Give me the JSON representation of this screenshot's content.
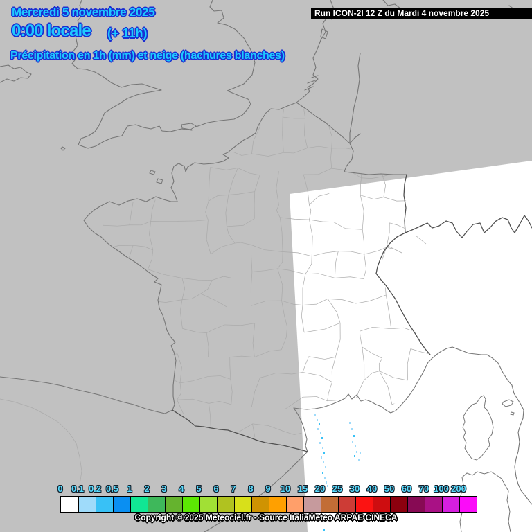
{
  "header": {
    "date": "Mercredi 5 novembre 2025",
    "local_time": "0:00 locale",
    "hour_offset": "(+ 11h)",
    "variable_legend": "Précipitation en 1h (mm) et neige (hachures blanches)",
    "run_info": "Run ICON-2I 12 Z du Mardi 4 novembre 2025"
  },
  "footer": {
    "copyright": "Copyright © 2025 Meteociel.fr - Source ItaliaMeteo ARPAE CINECA"
  },
  "colorbar": {
    "unit_labels": [
      "0",
      "0.1",
      "0.2",
      "0.5",
      "1",
      "2",
      "3",
      "4",
      "5",
      "6",
      "7",
      "8",
      "9",
      "10",
      "15",
      "20",
      "25",
      "30",
      "40",
      "50",
      "60",
      "70",
      "100",
      "200"
    ],
    "cell_colors": [
      "#ffffff",
      "#9fdbfa",
      "#38c1f6",
      "#0a8ff2",
      "#11e794",
      "#3eb85b",
      "#65b32e",
      "#5ce703",
      "#a1e035",
      "#b0c220",
      "#d8e01a",
      "#cf9302",
      "#ffa000",
      "#ff9f6a",
      "#c69a9d",
      "#c26d36",
      "#cd3c36",
      "#fc1312",
      "#ce0d10",
      "#8c000e",
      "#870a54",
      "#a91185",
      "#d61fdf",
      "#fb0cf9"
    ],
    "tick_color": "#58dcff"
  },
  "map": {
    "background": "#c1c1c1",
    "domain_fill": "#ffffff",
    "coast_color": "#757575",
    "national_border_color": "#4f4f4f",
    "department_border_color": "#aaaaaa",
    "title_fill": "#1ec9ff",
    "title_outline": "#1b2ed1",
    "precip_dots": [
      [
        454,
        598,
        "#9fdbfa"
      ],
      [
        457,
        605,
        "#9fdbfa"
      ],
      [
        460,
        611,
        "#38c1f6"
      ],
      [
        458,
        618,
        "#9fdbfa"
      ],
      [
        462,
        624,
        "#9fdbfa"
      ],
      [
        464,
        631,
        "#38c1f6"
      ],
      [
        461,
        638,
        "#9fdbfa"
      ],
      [
        465,
        645,
        "#9fdbfa"
      ],
      [
        467,
        652,
        "#38c1f6"
      ],
      [
        463,
        659,
        "#9fdbfa"
      ],
      [
        466,
        666,
        "#9fdbfa"
      ],
      [
        469,
        673,
        "#9fdbfa"
      ],
      [
        465,
        681,
        "#38c1f6"
      ],
      [
        468,
        688,
        "#9fdbfa"
      ],
      [
        470,
        695,
        "#9fdbfa"
      ],
      [
        466,
        703,
        "#9fdbfa"
      ],
      [
        472,
        700,
        "#9fdbfa"
      ],
      [
        467,
        764,
        "#38c1f6"
      ],
      [
        504,
        609,
        "#9fdbfa"
      ],
      [
        507,
        618,
        "#9fdbfa"
      ],
      [
        510,
        628,
        "#38c1f6"
      ],
      [
        508,
        636,
        "#9fdbfa"
      ],
      [
        512,
        643,
        "#9fdbfa"
      ],
      [
        514,
        651,
        "#9fdbfa"
      ],
      [
        511,
        657,
        "#38c1f6"
      ],
      [
        517,
        662,
        "#9fdbfa"
      ],
      [
        519,
        653,
        "#9fdbfa"
      ]
    ]
  }
}
